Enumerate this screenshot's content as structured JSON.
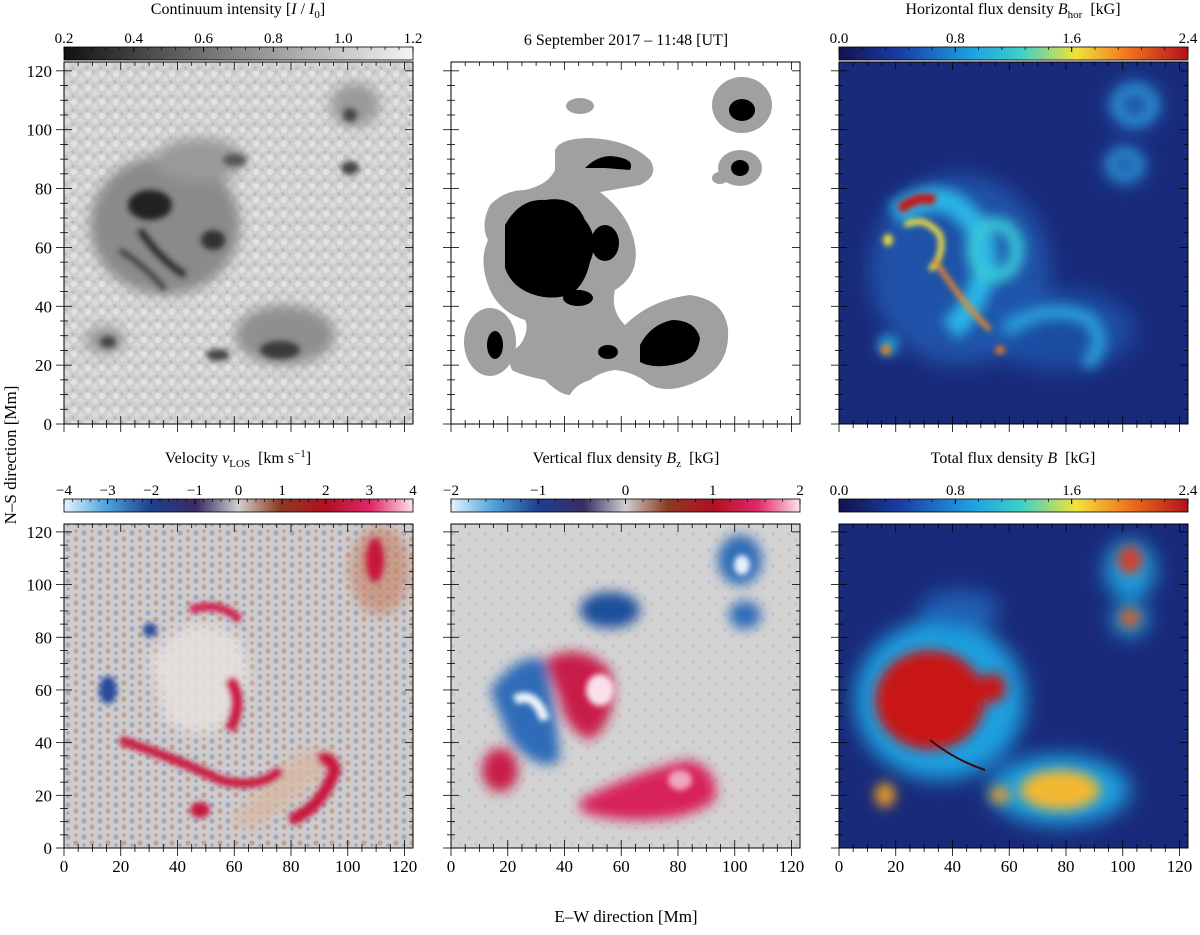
{
  "figure": {
    "date_label": "6 September 2017 – 11:48   [UT]",
    "x_axis_label": "E–W direction   [Mm]",
    "y_axis_label": "N–S direction   [Mm]",
    "x_ticks": [
      "0",
      "20",
      "40",
      "60",
      "80",
      "100",
      "120"
    ],
    "y_ticks": [
      "0",
      "20",
      "40",
      "60",
      "80",
      "100",
      "120"
    ]
  },
  "colors": {
    "gray_dark": "#111111",
    "gray_light": "#f2f2f2",
    "mask_umbra": "#000000",
    "mask_penumbra": "#a0a0a0",
    "mask_quiet": "#ffffff",
    "jet_low": "#14145a",
    "jet_mid": "#1ec8e6",
    "jet_high": "#c81414",
    "bwr_neg": "#1f5fb4",
    "bwr_zero": "#cfcfcf",
    "bwr_pos": "#c3143c"
  },
  "panels": [
    {
      "id": "continuum",
      "title_main": "Continuum intensity [",
      "title_I": "I",
      "title_slash": " / ",
      "title_I0": "I",
      "title_sub0": "0",
      "title_end": "]",
      "cbar_ticks": [
        "0.2",
        "0.4",
        "0.6",
        "0.8",
        "1.0",
        "1.2"
      ]
    },
    {
      "id": "mask"
    },
    {
      "id": "bhor",
      "title_main": "Horizontal flux density ",
      "title_sym": "B",
      "title_sub": "hor",
      "title_unit": "[kG]",
      "cbar_ticks": [
        "0.0",
        "0.8",
        "1.6",
        "2.4"
      ]
    },
    {
      "id": "vlos",
      "title_main": "Velocity ",
      "title_sym": "v",
      "title_sub": "LOS",
      "title_unit": "[km s",
      "title_sup": "−1",
      "title_unit_end": "]",
      "cbar_ticks": [
        "−4",
        "−3",
        "−2",
        "−1",
        "0",
        "1",
        "2",
        "3",
        "4"
      ]
    },
    {
      "id": "bz",
      "title_main": "Vertical flux density ",
      "title_sym": "B",
      "title_sub": "z",
      "title_unit": "[kG]",
      "cbar_ticks": [
        "−2",
        "−1",
        "0",
        "1",
        "2"
      ]
    },
    {
      "id": "btot",
      "title_main": "Total flux density ",
      "title_sym": "B",
      "title_unit": "[kG]",
      "cbar_ticks": [
        "0.0",
        "0.8",
        "1.6",
        "2.4"
      ]
    }
  ]
}
